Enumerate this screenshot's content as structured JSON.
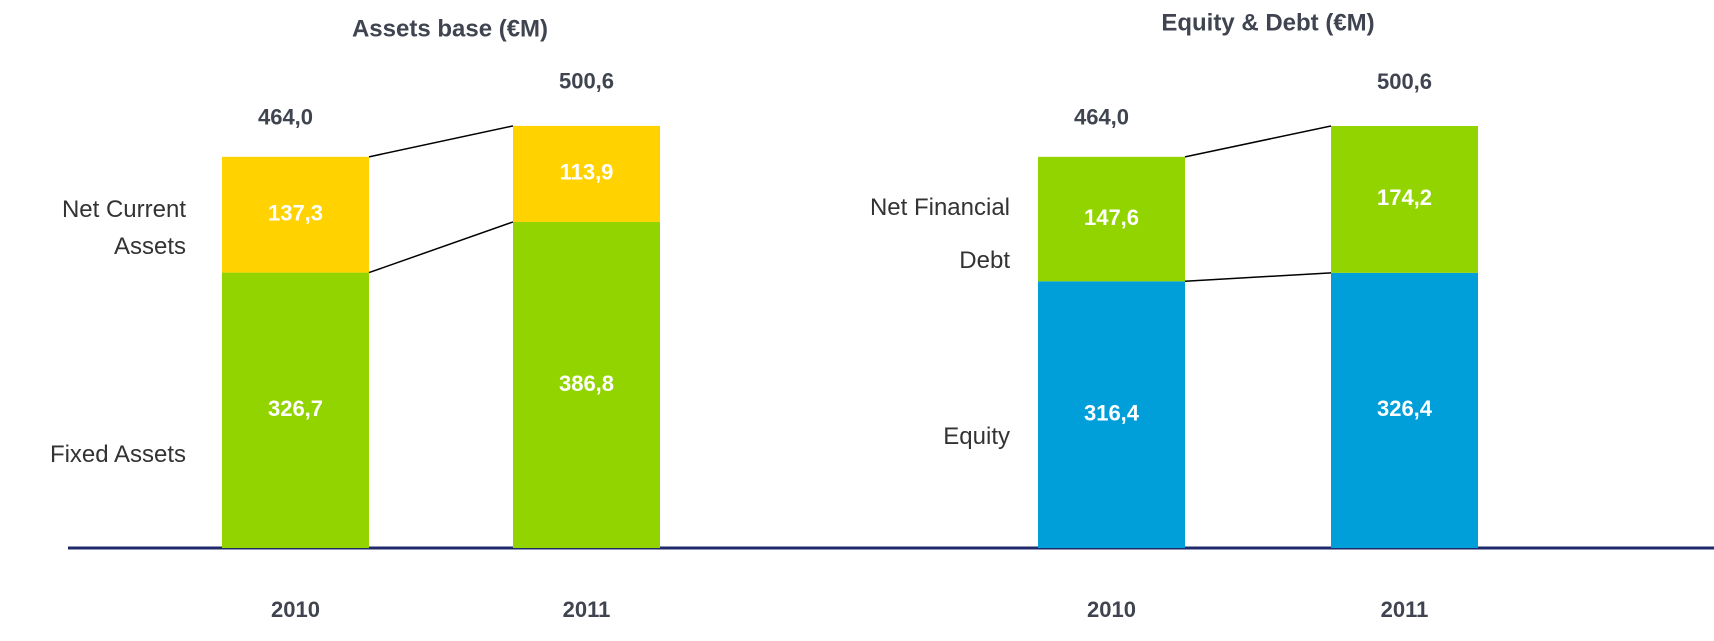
{
  "chart_data": [
    {
      "type": "stacked_bar",
      "title": "Assets base (€M)",
      "categories": [
        "2010",
        "2011"
      ],
      "series": [
        {
          "name": "Fixed Assets",
          "color": "#92D400",
          "values": [
            326.7,
            386.8
          ],
          "value_labels": [
            "326,7",
            "386,8"
          ]
        },
        {
          "name": "Net Current Assets",
          "color": "#FFD200",
          "values": [
            137.3,
            113.9
          ],
          "value_labels": [
            "137,3",
            "113,9"
          ]
        }
      ],
      "totals": [
        464.0,
        500.6
      ],
      "total_labels": [
        "464,0",
        "500,6"
      ]
    },
    {
      "type": "stacked_bar",
      "title": "Equity & Debt (€M)",
      "categories": [
        "2010",
        "2011"
      ],
      "series": [
        {
          "name": "Equity",
          "color": "#009FDA",
          "values": [
            316.4,
            326.4
          ],
          "value_labels": [
            "316,4",
            "326,4"
          ]
        },
        {
          "name": "Net Financial Debt",
          "color": "#92D400",
          "values": [
            147.6,
            174.2
          ],
          "value_labels": [
            "147,6",
            "174,2"
          ]
        }
      ],
      "totals": [
        464.0,
        500.6
      ],
      "total_labels": [
        "464,0",
        "500,6"
      ]
    }
  ]
}
